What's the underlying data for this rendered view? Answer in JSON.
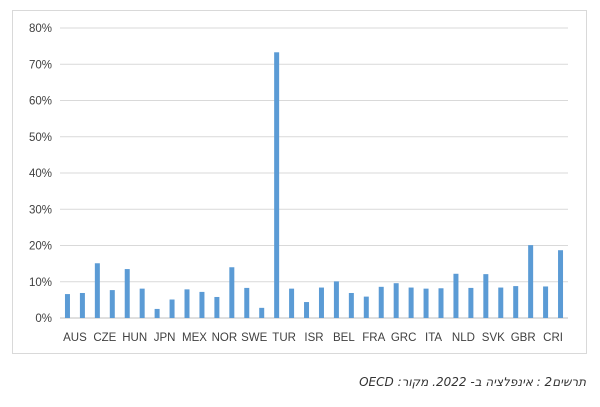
{
  "chart_data": {
    "type": "bar",
    "title": "",
    "xlabel": "",
    "ylabel": "",
    "ylim": [
      0,
      80
    ],
    "yticks": [
      "0%",
      "10%",
      "20%",
      "30%",
      "40%",
      "50%",
      "60%",
      "70%",
      "80%"
    ],
    "grid": true,
    "legend": "none",
    "bar_color": "#5b9bd5",
    "categories": [
      "AUS",
      "",
      "CZE",
      "",
      "HUN",
      "",
      "JPN",
      "",
      "MEX",
      "",
      "NOR",
      "",
      "SWE",
      "",
      "TUR",
      "",
      "ISR",
      "",
      "BEL",
      "",
      "FRA",
      "",
      "GRC",
      "",
      "ITA",
      "",
      "NLD",
      "",
      "SVK",
      "",
      "GBR",
      "",
      "CRI",
      ""
    ],
    "values": [
      6.6,
      6.9,
      15.1,
      7.7,
      13.5,
      8.1,
      2.5,
      5.1,
      7.9,
      7.2,
      5.8,
      14.0,
      8.3,
      2.8,
      73.3,
      8.1,
      4.4,
      8.4,
      10.1,
      6.9,
      5.9,
      8.6,
      9.6,
      8.4,
      8.1,
      8.2,
      12.2,
      8.3,
      12.1,
      8.4,
      8.8,
      20.1,
      8.7,
      18.7
    ]
  },
  "caption": "תרשים2 : אינפלציה ב- 2022. מקור: OECD"
}
